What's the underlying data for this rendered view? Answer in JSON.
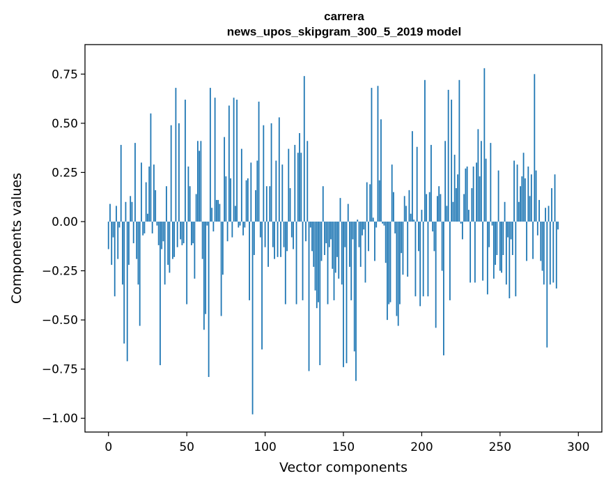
{
  "chart_data": {
    "type": "bar",
    "title": "carrera",
    "subtitle": "news_upos_skipgram_300_5_2019 model",
    "xlabel": "Vector components",
    "ylabel": "Components values",
    "xlim": [
      -15,
      315
    ],
    "ylim": [
      -1.07,
      0.9
    ],
    "xticks": [
      0,
      50,
      100,
      150,
      200,
      250,
      300
    ],
    "xtick_labels": [
      "0",
      "50",
      "100",
      "150",
      "200",
      "250",
      "300"
    ],
    "yticks": [
      -1.0,
      -0.75,
      -0.5,
      -0.25,
      0.0,
      0.25,
      0.5,
      0.75
    ],
    "ytick_labels": [
      "−1.00",
      "−0.75",
      "−0.50",
      "−0.25",
      "0.00",
      "0.25",
      "0.50",
      "0.75"
    ],
    "bar_color": "#1f77b4",
    "values": [
      -0.14,
      0.09,
      -0.22,
      -0.08,
      -0.38,
      0.08,
      -0.19,
      -0.03,
      0.39,
      -0.32,
      -0.62,
      0.1,
      -0.71,
      -0.22,
      0.13,
      0.1,
      -0.11,
      0.4,
      -0.19,
      -0.32,
      -0.53,
      0.3,
      -0.07,
      -0.06,
      0.2,
      0.04,
      0.28,
      0.55,
      -0.06,
      0.29,
      0.16,
      -0.02,
      -0.12,
      -0.73,
      -0.14,
      -0.1,
      -0.32,
      0.18,
      -0.22,
      -0.26,
      0.49,
      -0.19,
      -0.18,
      0.68,
      -0.13,
      0.5,
      -0.09,
      -0.12,
      -0.11,
      0.62,
      -0.42,
      0.28,
      0.18,
      -0.12,
      -0.11,
      -0.29,
      0.14,
      0.41,
      0.36,
      0.41,
      -0.19,
      -0.55,
      -0.47,
      -0.02,
      -0.79,
      0.68,
      0.07,
      -0.05,
      0.63,
      0.11,
      0.11,
      0.09,
      -0.48,
      -0.27,
      0.43,
      0.23,
      -0.1,
      0.59,
      0.22,
      -0.08,
      0.63,
      0.08,
      0.62,
      -0.03,
      -0.02,
      0.37,
      -0.07,
      -0.03,
      0.21,
      0.22,
      -0.4,
      0.3,
      -0.98,
      -0.17,
      0.16,
      0.31,
      0.61,
      -0.08,
      -0.65,
      0.49,
      -0.13,
      0.18,
      -0.23,
      0.18,
      0.5,
      -0.13,
      -0.19,
      0.31,
      -0.18,
      0.53,
      -0.18,
      0.29,
      -0.13,
      -0.42,
      -0.15,
      0.37,
      0.17,
      -0.08,
      -0.14,
      0.39,
      -0.42,
      0.35,
      0.45,
      0.35,
      -0.4,
      0.74,
      -0.1,
      0.41,
      -0.76,
      -0.03,
      -0.15,
      -0.23,
      -0.35,
      -0.44,
      -0.41,
      -0.73,
      -0.2,
      0.18,
      -0.17,
      -0.11,
      -0.42,
      -0.13,
      -0.09,
      -0.24,
      -0.4,
      -0.26,
      -0.18,
      -0.29,
      0.12,
      -0.32,
      -0.74,
      -0.13,
      -0.72,
      0.09,
      -0.23,
      -0.4,
      -0.09,
      -0.66,
      -0.81,
      0.01,
      -0.13,
      -0.23,
      -0.07,
      -0.04,
      -0.31,
      0.2,
      -0.15,
      0.19,
      0.68,
      0.02,
      -0.2,
      -0.03,
      0.69,
      0.21,
      0.52,
      -0.01,
      -0.02,
      -0.21,
      -0.5,
      -0.42,
      -0.41,
      0.29,
      0.15,
      -0.06,
      -0.48,
      -0.53,
      -0.42,
      -0.16,
      -0.27,
      0.13,
      0.08,
      -0.28,
      0.16,
      0.04,
      0.46,
      0.01,
      -0.38,
      0.38,
      -0.15,
      -0.43,
      0.06,
      -0.38,
      0.72,
      0.14,
      -0.38,
      0.15,
      0.39,
      -0.05,
      -0.15,
      -0.54,
      0.13,
      0.18,
      0.14,
      -0.25,
      -0.68,
      0.41,
      0.08,
      0.67,
      -0.4,
      0.62,
      0.1,
      0.34,
      0.17,
      0.24,
      0.72,
      -0.01,
      -0.09,
      0.14,
      0.27,
      0.28,
      0.06,
      -0.31,
      0.17,
      0.28,
      -0.31,
      0.3,
      0.47,
      0.23,
      0.41,
      -0.3,
      0.78,
      0.32,
      -0.37,
      -0.13,
      0.4,
      -0.02,
      -0.29,
      -0.22,
      -0.17,
      0.26,
      -0.25,
      -0.26,
      -0.17,
      0.1,
      -0.32,
      -0.08,
      -0.39,
      -0.09,
      -0.17,
      0.31,
      -0.38,
      0.29,
      0.1,
      0.18,
      0.23,
      0.35,
      0.22,
      -0.2,
      0.28,
      0.13,
      0.24,
      -0.19,
      0.75,
      0.26,
      -0.07,
      0.11,
      -0.2,
      -0.25,
      -0.32,
      0.07,
      -0.64,
      0.08,
      -0.32,
      0.17,
      -0.31,
      0.24,
      -0.34,
      -0.04
    ]
  }
}
